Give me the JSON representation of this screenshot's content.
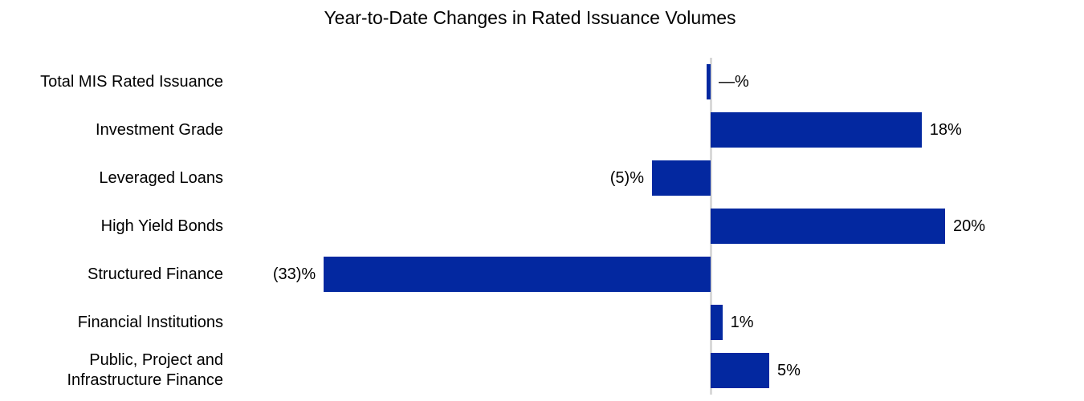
{
  "chart_data": {
    "type": "bar",
    "orientation": "horizontal",
    "title": "Year-to-Date Changes in Rated Issuance Volumes",
    "categories": [
      "Total MIS Rated Issuance",
      "Investment Grade",
      "Leveraged Loans",
      "High Yield Bonds",
      "Structured Finance",
      "Financial Institutions",
      "Public, Project and Infrastructure Finance"
    ],
    "values": [
      0,
      18,
      -5,
      20,
      -33,
      1,
      5
    ],
    "value_labels": [
      "—%",
      "18%",
      "(5)%",
      "20%",
      "(33)%",
      "1%",
      "5%"
    ],
    "unit": "%",
    "xlim": [
      -33,
      32
    ],
    "grid": false,
    "legend": false,
    "bar_color": "#0328a0",
    "axis_color": "#d9d9d9",
    "text_color": "#000000",
    "background_color": "#ffffff"
  }
}
